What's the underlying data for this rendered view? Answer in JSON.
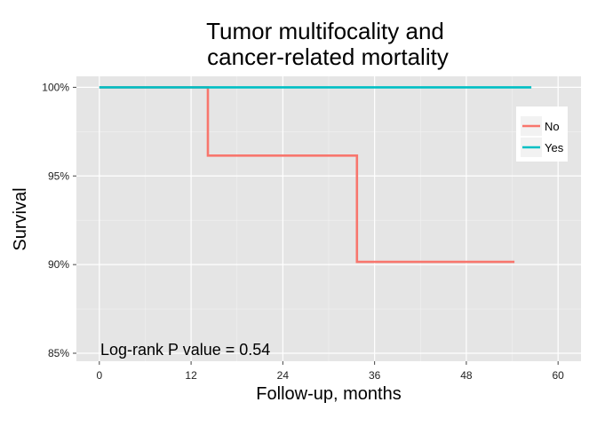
{
  "chart_data": {
    "type": "line",
    "step": true,
    "title_lines": [
      "Tumor multifocality and",
      "cancer-related mortality"
    ],
    "xlabel": "Follow-up, months",
    "ylabel": "Survival",
    "xlim": [
      -3,
      63
    ],
    "ylim": [
      0.8455,
      1.0062
    ],
    "x_ticks": [
      0,
      12,
      24,
      36,
      48,
      60
    ],
    "x_tick_labels": [
      "0",
      "12",
      "24",
      "36",
      "48",
      "60"
    ],
    "y_ticks": [
      0.85,
      0.9,
      0.95,
      1.0
    ],
    "y_tick_labels": [
      "85%",
      "90%",
      "95%",
      "100%"
    ],
    "grid": true,
    "legend": {
      "position": "right",
      "entries": [
        "No",
        "Yes"
      ]
    },
    "annotation": "Log-rank P value = 0.54",
    "series": [
      {
        "name": "No",
        "color": "#F8766D",
        "points": [
          [
            0,
            1.0
          ],
          [
            14.2,
            1.0
          ],
          [
            14.2,
            0.9615
          ],
          [
            33.7,
            0.9615
          ],
          [
            33.7,
            0.9015
          ],
          [
            54.3,
            0.9015
          ]
        ]
      },
      {
        "name": "Yes",
        "color": "#00BFC4",
        "points": [
          [
            0,
            1.0
          ],
          [
            56.5,
            1.0
          ]
        ]
      }
    ]
  }
}
